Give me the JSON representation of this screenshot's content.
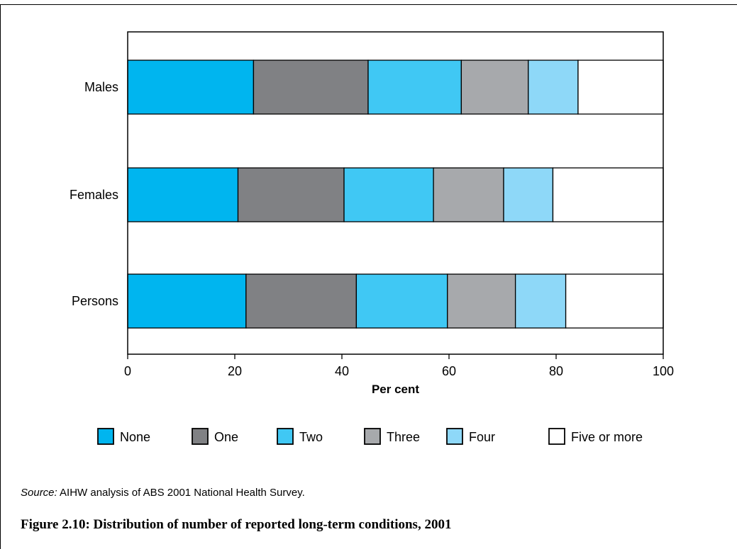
{
  "chart_data": {
    "type": "bar",
    "orientation": "horizontal",
    "stacked": true,
    "categories": [
      "Males",
      "Females",
      "Persons"
    ],
    "series": [
      {
        "name": "None",
        "color": "#00b5ef",
        "values": [
          23.5,
          20.6,
          22.1
        ]
      },
      {
        "name": "One",
        "color": "#808184",
        "values": [
          21.4,
          19.8,
          20.6
        ]
      },
      {
        "name": "Two",
        "color": "#40c8f4",
        "values": [
          17.4,
          16.7,
          17.0
        ]
      },
      {
        "name": "Three",
        "color": "#a7a9ac",
        "values": [
          12.5,
          13.1,
          12.7
        ]
      },
      {
        "name": "Four",
        "color": "#8ed8f8",
        "values": [
          9.3,
          9.2,
          9.4
        ]
      },
      {
        "name": "Five or more",
        "color": "#ffffff",
        "values": [
          15.9,
          20.6,
          18.2
        ]
      }
    ],
    "xlabel": "Per cent",
    "ylabel": "",
    "xlim": [
      0,
      100
    ],
    "xticks": [
      0,
      20,
      40,
      60,
      80,
      100
    ],
    "grid": false,
    "legend_position": "bottom"
  },
  "source": {
    "label": "Source:",
    "text": " AIHW analysis of ABS 2001 National Health Survey."
  },
  "caption": "Figure 2.10: Distribution of number of reported long-term conditions, 2001"
}
